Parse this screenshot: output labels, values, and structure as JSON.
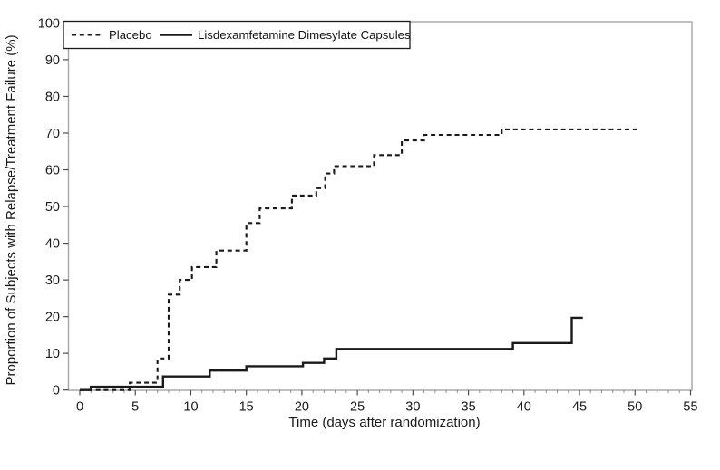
{
  "figure": {
    "background": "#ffffff",
    "frame_color": "#a6a6a6",
    "tick_color": "#4d4d4d",
    "text_color": "#1a1a1a"
  },
  "legend": {
    "entries": [
      {
        "label": "Placebo",
        "style": "dashed"
      },
      {
        "label": "Lisdexamfetamine Dimesylate Capsules",
        "style": "solid"
      }
    ]
  },
  "chart_data": {
    "type": "line",
    "variant": "kaplan_meier_step",
    "title": "",
    "xlabel": "Time (days after randomization)",
    "ylabel": "Proportion of Subjects with Relapse/Treatment Failure (%)",
    "xlim": [
      0,
      55
    ],
    "ylim": [
      0,
      100
    ],
    "x_ticks": [
      0,
      5,
      10,
      15,
      20,
      25,
      30,
      35,
      40,
      45,
      50,
      55
    ],
    "y_ticks": [
      0,
      10,
      20,
      30,
      40,
      50,
      60,
      70,
      80,
      90,
      100
    ],
    "grid": false,
    "legend_position": "top-left inside plot",
    "line_color": "#1a1a1a",
    "series": [
      {
        "name": "Placebo",
        "line_style": "dashed",
        "end_day": 50.2,
        "steps_day_pct": [
          [
            0,
            0
          ],
          [
            4.5,
            2
          ],
          [
            7,
            8.6
          ],
          [
            8,
            26
          ],
          [
            9,
            30
          ],
          [
            10.1,
            33.5
          ],
          [
            12.3,
            38
          ],
          [
            15,
            45.5
          ],
          [
            16.2,
            49.5
          ],
          [
            19.1,
            53
          ],
          [
            21.3,
            55
          ],
          [
            22.1,
            59
          ],
          [
            22.9,
            61
          ],
          [
            26.5,
            64
          ],
          [
            29,
            68
          ],
          [
            31,
            69.5
          ],
          [
            38,
            71
          ]
        ]
      },
      {
        "name": "Lisdexamfetamine Dimesylate Capsules",
        "line_style": "solid",
        "end_day": 45.3,
        "steps_day_pct": [
          [
            0,
            0
          ],
          [
            1,
            0.9
          ],
          [
            7.5,
            3.7
          ],
          [
            11.7,
            5.3
          ],
          [
            15,
            6.5
          ],
          [
            20.1,
            7.4
          ],
          [
            22,
            8.6
          ],
          [
            23.1,
            11.2
          ],
          [
            39,
            12.8
          ],
          [
            44.3,
            19.7
          ]
        ]
      }
    ]
  }
}
